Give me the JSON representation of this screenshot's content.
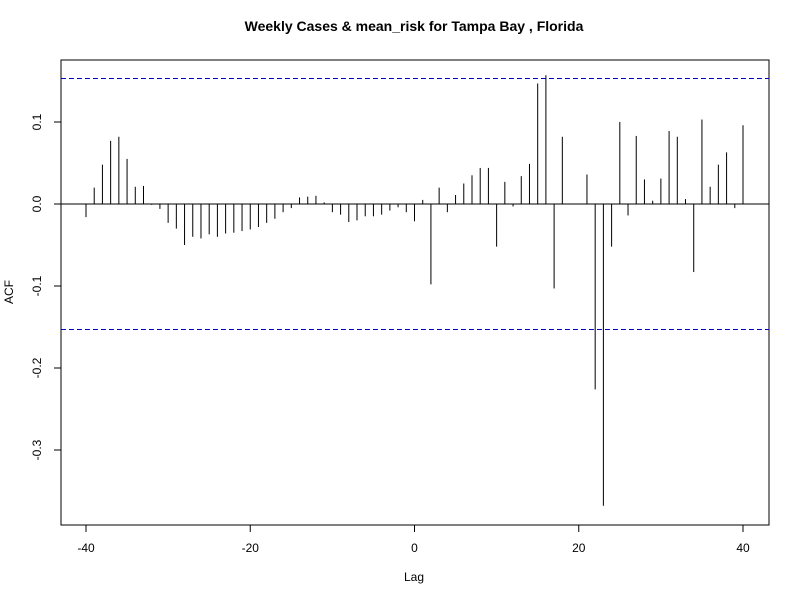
{
  "chart_data": {
    "type": "bar",
    "subtype": "ccf",
    "title": "Weekly Cases & mean_risk for Tampa Bay , Florida",
    "xlabel": "Lag",
    "ylabel": "ACF",
    "xlim": [
      -40,
      40
    ],
    "ylim": [
      -0.37,
      0.155
    ],
    "xticks": [
      -40,
      -20,
      0,
      20,
      40
    ],
    "yticks": [
      -0.3,
      -0.2,
      -0.1,
      0.0,
      0.1
    ],
    "xtick_labels": [
      "-40",
      "-20",
      "0",
      "20",
      "40"
    ],
    "ytick_labels": [
      "-0.3",
      "-0.2",
      "-0.1",
      "0.0",
      "0.1"
    ],
    "confidence_bound": 0.153,
    "confidence_color": "#0000cc",
    "bar_color": "#000000",
    "grid": false,
    "x": [
      -40,
      -39,
      -38,
      -37,
      -36,
      -35,
      -34,
      -33,
      -32,
      -31,
      -30,
      -29,
      -28,
      -27,
      -26,
      -25,
      -24,
      -23,
      -22,
      -21,
      -20,
      -19,
      -18,
      -17,
      -16,
      -15,
      -14,
      -13,
      -12,
      -11,
      -10,
      -9,
      -8,
      -7,
      -6,
      -5,
      -4,
      -3,
      -2,
      -1,
      0,
      1,
      2,
      3,
      4,
      5,
      6,
      7,
      8,
      9,
      10,
      11,
      12,
      13,
      14,
      15,
      16,
      17,
      18,
      19,
      20,
      21,
      22,
      23,
      24,
      25,
      26,
      27,
      28,
      29,
      30,
      31,
      32,
      33,
      34,
      35,
      36,
      37,
      38,
      39,
      40
    ],
    "values": [
      -0.016,
      0.02,
      0.048,
      0.077,
      0.082,
      0.055,
      0.021,
      0.022,
      -0.001,
      -0.006,
      -0.023,
      -0.03,
      -0.05,
      -0.04,
      -0.042,
      -0.037,
      -0.04,
      -0.036,
      -0.035,
      -0.033,
      -0.031,
      -0.028,
      -0.023,
      -0.018,
      -0.01,
      -0.005,
      0.008,
      0.009,
      0.01,
      0.002,
      -0.01,
      -0.013,
      -0.022,
      -0.02,
      -0.015,
      -0.015,
      -0.013,
      -0.008,
      -0.004,
      -0.01,
      -0.021,
      0.005,
      -0.098,
      0.02,
      -0.01,
      0.011,
      0.025,
      0.035,
      0.044,
      0.044,
      -0.052,
      0.027,
      -0.003,
      0.034,
      0.049,
      0.147,
      0.157,
      -0.103,
      0.082,
      0.0,
      0.0,
      0.036,
      -0.226,
      -0.368,
      -0.052,
      0.1,
      -0.014,
      0.083,
      0.03,
      0.004,
      0.031,
      0.089,
      0.082,
      0.006,
      -0.083,
      0.103,
      0.021,
      0.048,
      0.063,
      -0.005,
      0.096
    ]
  }
}
